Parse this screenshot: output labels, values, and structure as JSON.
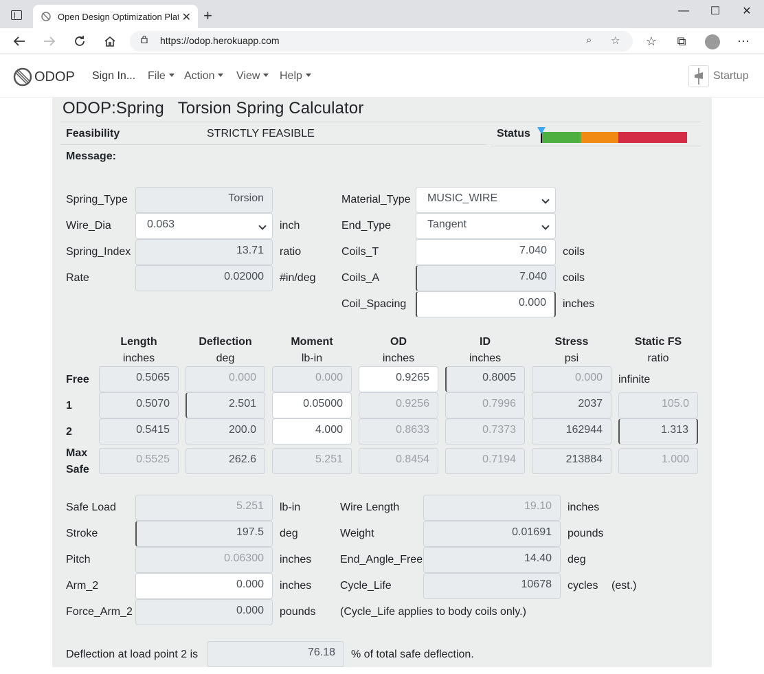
{
  "browser": {
    "tab_title": "Open Design Optimization Platfo",
    "url": "https://odop.herokuapp.com"
  },
  "navbar": {
    "brand": "ODOP",
    "sign_in": "Sign In...",
    "menus": [
      "File",
      "Action",
      "View",
      "Help"
    ],
    "startup": "Startup"
  },
  "header": {
    "title": "ODOP:Spring   Torsion Spring Calculator",
    "feasibility_label": "Feasibility",
    "feasibility_value": "STRICTLY FEASIBLE",
    "status_label": "Status",
    "message_label": "Message:",
    "status_colors": [
      "#4caf3f",
      "#f08a12",
      "#d42c44"
    ]
  },
  "top_left": [
    {
      "label": "Spring_Type",
      "value": "Torsion",
      "unit": ""
    },
    {
      "label": "Wire_Dia",
      "value": "0.063",
      "unit": "inch"
    },
    {
      "label": "Spring_Index",
      "value": "13.71",
      "unit": "ratio"
    },
    {
      "label": "Rate",
      "value": "0.02000",
      "unit": "#in/deg"
    }
  ],
  "top_right": [
    {
      "label": "Material_Type",
      "value": "MUSIC_WIRE",
      "unit": ""
    },
    {
      "label": "End_Type",
      "value": "Tangent",
      "unit": ""
    },
    {
      "label": "Coils_T",
      "value": "7.040",
      "unit": "coils"
    },
    {
      "label": "Coils_A",
      "value": "7.040",
      "unit": "coils"
    },
    {
      "label": "Coil_Spacing",
      "value": "0.000",
      "unit": "inches"
    }
  ],
  "table": {
    "headers": [
      {
        "name": "Length",
        "unit": "inches"
      },
      {
        "name": "Deflection",
        "unit": "deg"
      },
      {
        "name": "Moment",
        "unit": "lb-in"
      },
      {
        "name": "OD",
        "unit": "inches"
      },
      {
        "name": "ID",
        "unit": "inches"
      },
      {
        "name": "Stress",
        "unit": "psi"
      },
      {
        "name": "Static FS",
        "unit": "ratio"
      }
    ],
    "free": {
      "label": "Free",
      "values": [
        "0.5065",
        "0.000",
        "0.000",
        "0.9265",
        "0.8005",
        "0.000"
      ],
      "fs_text": "infinite"
    },
    "row1": {
      "label": "1",
      "values": [
        "0.5070",
        "2.501",
        "0.05000",
        "0.9256",
        "0.7996",
        "2037",
        "105.0"
      ]
    },
    "row2": {
      "label": "2",
      "values": [
        "0.5415",
        "200.0",
        "4.000",
        "0.8633",
        "0.7373",
        "162944",
        "1.313"
      ]
    },
    "maxsafe": {
      "label_1": "Max",
      "label_2": "Safe",
      "values": [
        "0.5525",
        "262.6",
        "5.251",
        "0.8454",
        "0.7194",
        "213884",
        "1.000"
      ]
    }
  },
  "bottom_left": [
    {
      "label": "Safe Load",
      "value": "5.251",
      "unit": "lb-in"
    },
    {
      "label": "Stroke",
      "value": "197.5",
      "unit": "deg"
    },
    {
      "label": "Pitch",
      "value": "0.06300",
      "unit": "inches"
    },
    {
      "label": "Arm_2",
      "value": "0.000",
      "unit": "inches"
    },
    {
      "label": "Force_Arm_2",
      "value": "0.000",
      "unit": "pounds"
    }
  ],
  "bottom_right": [
    {
      "label": "Wire Length",
      "value": "19.10",
      "unit": "inches"
    },
    {
      "label": "Weight",
      "value": "0.01691",
      "unit": "pounds"
    },
    {
      "label": "End_Angle_Free",
      "value": "14.40",
      "unit": "deg"
    },
    {
      "label": "Cycle_Life",
      "value": "10678",
      "unit": "cycles",
      "note": "(est.)"
    }
  ],
  "cycle_note": "(Cycle_Life applies to body coils only.)",
  "deflection": {
    "prefix": "Deflection at load point 2 is",
    "value": "76.18",
    "suffix": "% of total safe deflection."
  }
}
